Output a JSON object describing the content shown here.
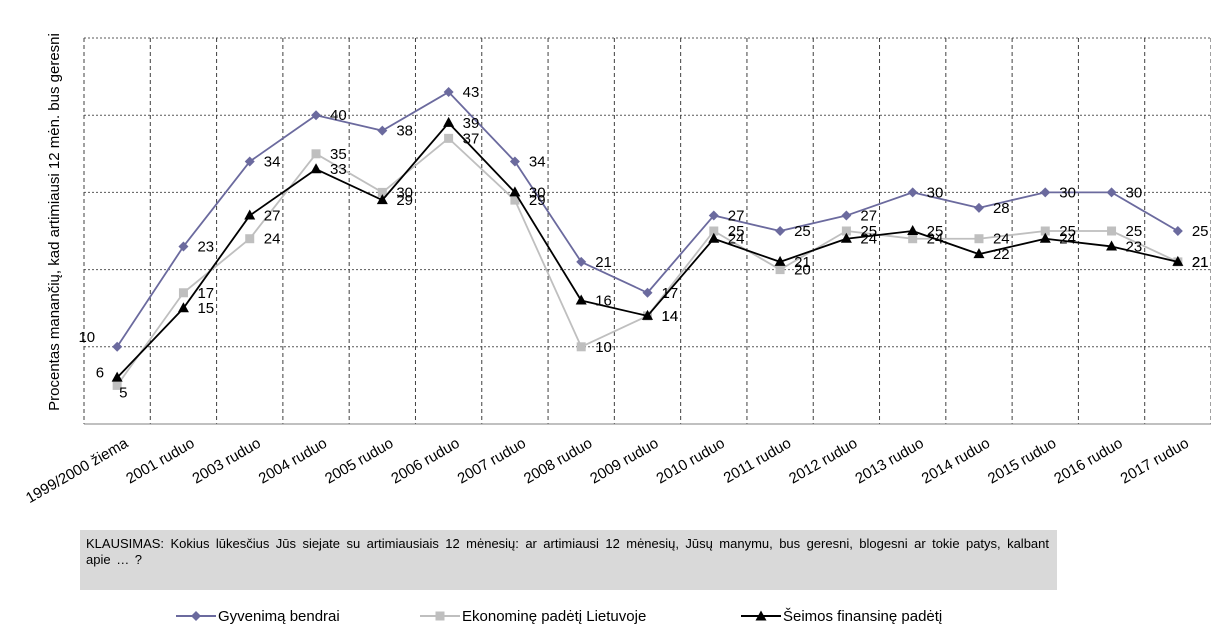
{
  "chart_data": {
    "type": "line",
    "ylabel": "Procentas manančių, kad artimiausi 12 mėn. bus geresni",
    "ylim": [
      0,
      50
    ],
    "grid": true,
    "legend_position": "bottom",
    "categories": [
      "1999/2000 žiema",
      "2001 ruduo",
      "2003 ruduo",
      "2004 ruduo",
      "2005 ruduo",
      "2006 ruduo",
      "2007 ruduo",
      "2008 ruduo",
      "2009 ruduo",
      "2010 ruduo",
      "2011 ruduo",
      "2012 ruduo",
      "2013 ruduo",
      "2014 ruduo",
      "2015 ruduo",
      "2016 ruduo",
      "2017 ruduo"
    ],
    "series": [
      {
        "name": "Gyvenimą bendrai",
        "color": "#6b6a9e",
        "marker": "diamond",
        "values": [
          10,
          23,
          34,
          40,
          38,
          43,
          34,
          21,
          17,
          27,
          25,
          27,
          30,
          28,
          30,
          30,
          25
        ]
      },
      {
        "name": "Ekonominę padėtį Lietuvoje",
        "color": "#bfbfbf",
        "marker": "square",
        "values": [
          5,
          17,
          24,
          35,
          30,
          37,
          29,
          10,
          14,
          25,
          20,
          25,
          24,
          24,
          25,
          25,
          21
        ]
      },
      {
        "name": "Šeimos finansinę padėtį",
        "color": "#000000",
        "marker": "triangle",
        "values": [
          6,
          15,
          27,
          33,
          29,
          39,
          30,
          16,
          14,
          24,
          21,
          24,
          25,
          22,
          24,
          23,
          21
        ]
      }
    ]
  },
  "question": "KLAUSIMAS: Kokius lūkesčius Jūs siejate su artimiausiais 12 mėnesių: ar artimiausi 12 mėnesių, Jūsų manymu, bus geresni, blogesni ar tokie patys, kalbant apie … ?"
}
